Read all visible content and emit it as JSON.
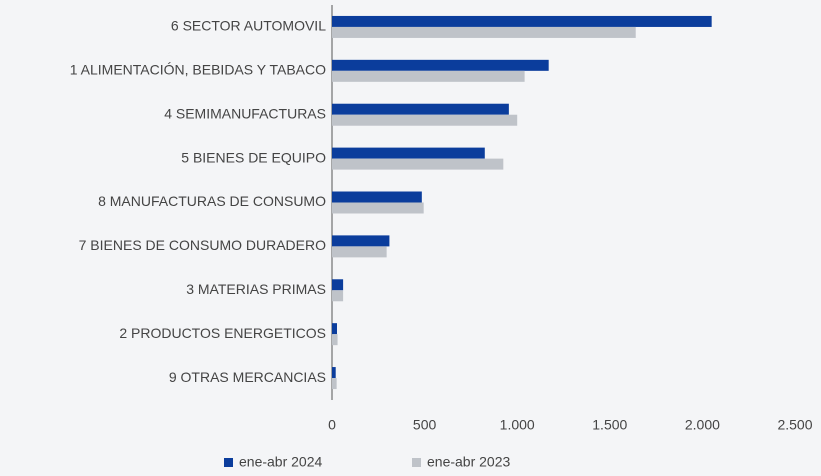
{
  "chart_data": {
    "type": "barh",
    "categories": [
      "6 SECTOR AUTOMOVIL",
      "1 ALIMENTACIÓN, BEBIDAS Y TABACO",
      "4 SEMIMANUFACTURAS",
      "5 BIENES DE EQUIPO",
      "8 MANUFACTURAS DE CONSUMO",
      "7 BIENES DE CONSUMO DURADERO",
      "3 MATERIAS PRIMAS",
      "2 PRODUCTOS ENERGETICOS",
      "9 OTRAS MERCANCIAS"
    ],
    "series": [
      {
        "name": "ene-abr 2024",
        "color": "#0b3d9c",
        "values": [
          2050,
          1170,
          955,
          825,
          485,
          310,
          60,
          27,
          20
        ]
      },
      {
        "name": "ene-abr 2023",
        "color": "#bfc3c9",
        "values": [
          1640,
          1040,
          1000,
          925,
          495,
          295,
          60,
          30,
          25
        ]
      }
    ],
    "xlim": [
      0,
      2500
    ],
    "xticks": [
      0,
      500,
      {
        "value": 1000,
        "label": "1.000"
      },
      {
        "value": 1500,
        "label": "1.500"
      },
      {
        "value": 2000,
        "label": "2.000"
      },
      {
        "value": 2500,
        "label": "2.500"
      }
    ],
    "legend": "bottom"
  }
}
